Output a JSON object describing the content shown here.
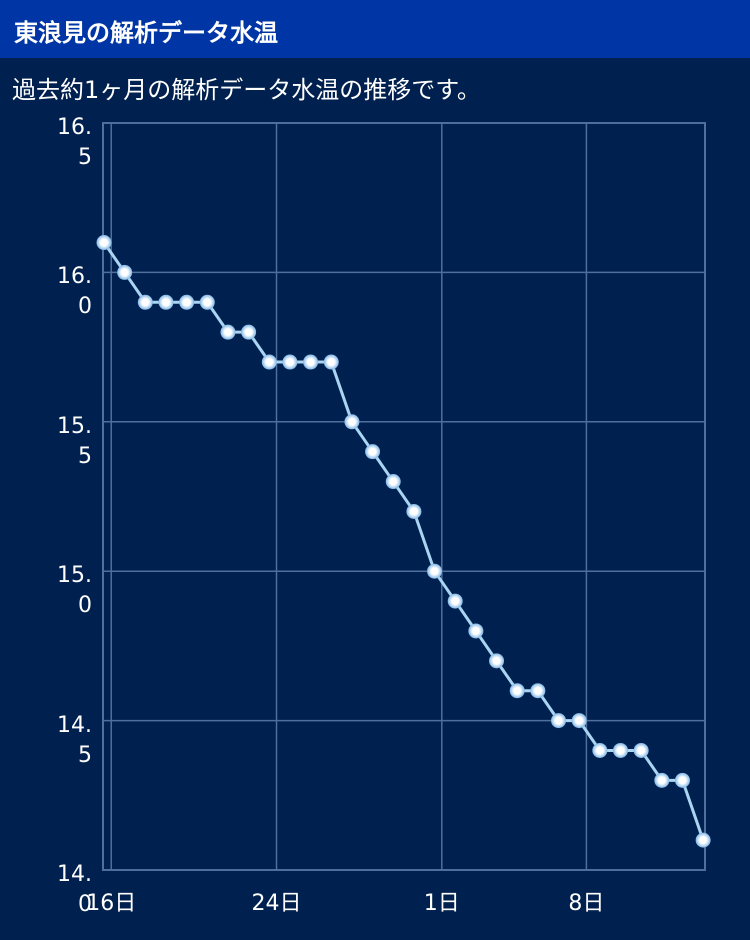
{
  "header": {
    "title": "東浪見の解析データ水温"
  },
  "chart_data": {
    "type": "line",
    "subtitle": "過去約1ヶ月の解析データ水温の推移です。",
    "categories": [
      "16日",
      null,
      null,
      null,
      null,
      null,
      null,
      null,
      "24日",
      null,
      null,
      null,
      null,
      null,
      null,
      null,
      "1日",
      null,
      null,
      null,
      null,
      null,
      null,
      "8日",
      null,
      null,
      null,
      null,
      null,
      null
    ],
    "values": [
      16.1,
      16.0,
      15.9,
      15.9,
      15.9,
      15.9,
      15.8,
      15.8,
      15.7,
      15.7,
      15.7,
      15.7,
      15.5,
      15.4,
      15.3,
      15.2,
      15.0,
      14.9,
      14.8,
      14.7,
      14.6,
      14.6,
      14.5,
      14.5,
      14.4,
      14.4,
      14.4,
      14.3,
      14.3,
      14.1
    ],
    "color": "#a9d4f2",
    "ylim": [
      14,
      16.5
    ],
    "yticks": [
      {
        "value": 14,
        "label": "14.0"
      },
      14.5,
      {
        "value": 15,
        "label": "15.0"
      },
      15.5,
      {
        "value": 16,
        "label": "16.0"
      },
      16.5
    ],
    "grid": true
  }
}
